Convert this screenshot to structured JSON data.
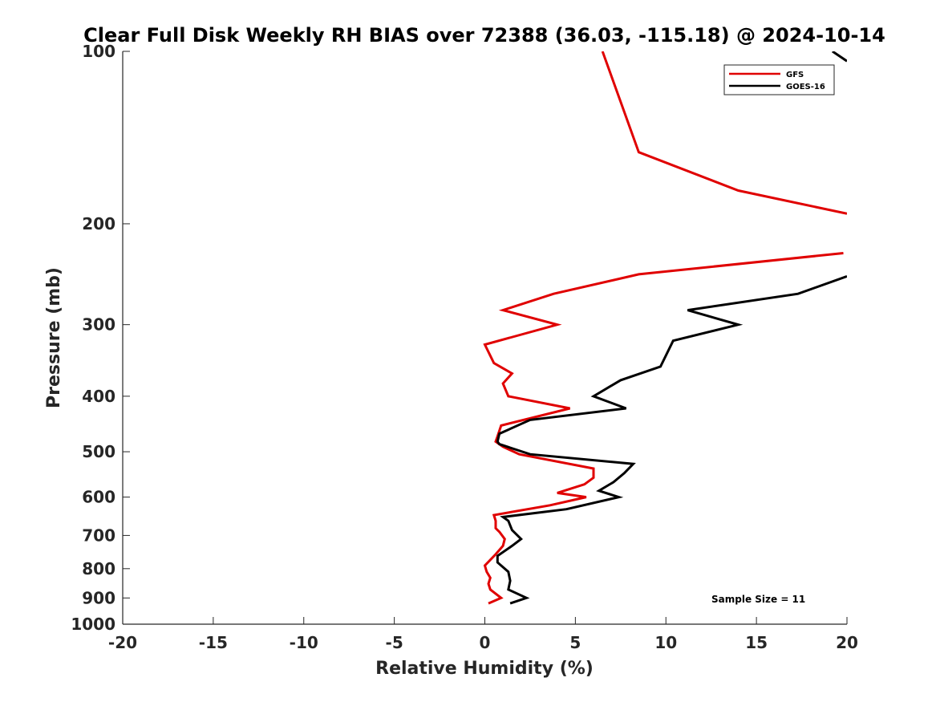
{
  "chart_data": {
    "type": "line",
    "title": "Clear Full Disk Weekly RH BIAS over 72388 (36.03, -115.18) @ 2024-10-14",
    "xlabel": "Relative Humidity (%)",
    "ylabel": "Pressure (mb)",
    "xlim": [
      -20,
      20
    ],
    "ylim": [
      100,
      1000
    ],
    "y_scale": "log",
    "y_reversed": true,
    "xticks": [
      -20,
      -15,
      -10,
      -5,
      0,
      5,
      10,
      15,
      20
    ],
    "xtick_labels": [
      "-20",
      "-15",
      "-10",
      "-5",
      "0",
      "5",
      "10",
      "15",
      "20"
    ],
    "yticks": [
      100,
      200,
      300,
      400,
      500,
      600,
      700,
      800,
      900,
      1000
    ],
    "ytick_labels": [
      "100",
      "200",
      "300",
      "400",
      "500",
      "600",
      "700",
      "800",
      "900",
      "1000"
    ],
    "grid": false,
    "legend_position": "top-right",
    "series": [
      {
        "name": "GFS",
        "color": "#e00000",
        "points": [
          [
            6.5,
            100
          ],
          [
            8.5,
            150
          ],
          [
            14,
            175
          ],
          [
            20,
            192
          ],
          null,
          [
            19.8,
            225
          ],
          [
            8.5,
            245
          ],
          [
            3.8,
            265
          ],
          [
            1.0,
            283
          ],
          [
            4.0,
            300
          ],
          [
            0.0,
            325
          ],
          [
            0.5,
            350
          ],
          [
            1.5,
            365
          ],
          [
            1.0,
            380
          ],
          [
            1.3,
            400
          ],
          [
            4.7,
            420
          ],
          [
            0.9,
            450
          ],
          [
            0.7,
            470
          ],
          [
            0.6,
            480
          ],
          [
            1.0,
            490
          ],
          [
            1.9,
            505
          ],
          [
            6.0,
            535
          ],
          [
            6.0,
            555
          ],
          [
            5.5,
            570
          ],
          [
            4.0,
            590
          ],
          [
            5.6,
            600
          ],
          [
            3.6,
            620
          ],
          [
            0.5,
            645
          ],
          [
            0.6,
            660
          ],
          [
            0.6,
            680
          ],
          [
            0.8,
            690
          ],
          [
            1.1,
            710
          ],
          [
            1.0,
            730
          ],
          [
            0.6,
            755
          ],
          [
            0.0,
            790
          ],
          [
            0.1,
            810
          ],
          [
            0.3,
            830
          ],
          [
            0.2,
            850
          ],
          [
            0.3,
            870
          ],
          [
            0.9,
            900
          ],
          [
            0.2,
            920
          ]
        ]
      },
      {
        "name": "GOES-16",
        "color": "#000000",
        "points": [
          [
            19.2,
            100
          ],
          [
            20.0,
            104
          ],
          null,
          [
            20.0,
            247
          ],
          [
            17.3,
            265
          ],
          [
            11.2,
            283
          ],
          [
            14.0,
            300
          ],
          [
            10.4,
            320
          ],
          [
            9.7,
            355
          ],
          [
            7.5,
            375
          ],
          [
            6.0,
            400
          ],
          [
            7.8,
            420
          ],
          [
            2.5,
            440
          ],
          [
            0.8,
            465
          ],
          [
            0.7,
            480
          ],
          [
            0.8,
            485
          ],
          [
            2.5,
            505
          ],
          [
            8.2,
            525
          ],
          [
            7.7,
            545
          ],
          [
            7.1,
            565
          ],
          [
            6.3,
            585
          ],
          [
            7.4,
            600
          ],
          [
            4.5,
            630
          ],
          [
            1.0,
            650
          ],
          [
            1.3,
            660
          ],
          [
            1.5,
            685
          ],
          [
            2.0,
            710
          ],
          [
            1.5,
            730
          ],
          [
            0.7,
            760
          ],
          [
            0.7,
            780
          ],
          [
            1.3,
            810
          ],
          [
            1.4,
            840
          ],
          [
            1.3,
            870
          ],
          [
            2.3,
            900
          ],
          [
            1.4,
            920
          ]
        ]
      }
    ],
    "annotation": "Sample Size = 11"
  }
}
